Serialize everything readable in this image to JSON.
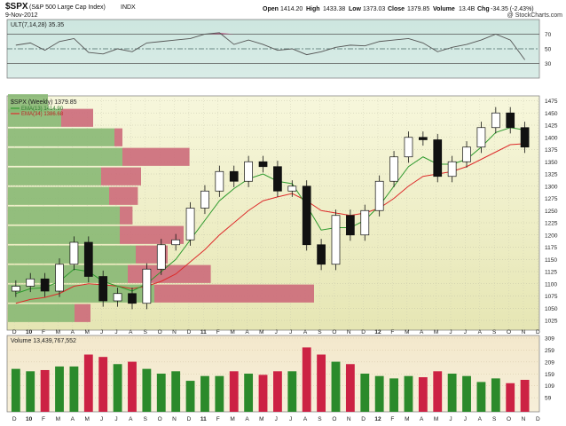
{
  "header": {
    "symbol": "$SPX",
    "name": "(S&P 500 Large Cap Index)",
    "exchange": "INDX",
    "date": "9-Nov-2012",
    "watermark": "@ StockCharts.com",
    "quote": {
      "open_label": "Open",
      "open": "1414.20",
      "high_label": "High",
      "high": "1433.38",
      "low_label": "Low",
      "low": "1373.03",
      "close_label": "Close",
      "close": "1379.85",
      "volume_label": "Volume",
      "volume": "13.4B",
      "chg_label": "Chg",
      "chg": "-34.35 (-2.43%)"
    }
  },
  "colors": {
    "up": "#2b8a2b",
    "down": "#cc2244",
    "ema13": "#2e9a2e",
    "ema34": "#dd2b2b",
    "ult_line": "#555555",
    "ult_fill": "#b5507e",
    "price_bg_top": "#f6f6d6",
    "price_bg_bottom": "#e8e8b8",
    "ult_bg": "#cfe6e0",
    "vol_bg": "#f4ead0",
    "vbp_green": "#88b874",
    "vbp_red": "#cc6a7a"
  },
  "chart_data": [
    {
      "type": "line",
      "title": "ULT(7,14,28) 35.35",
      "x": [
        "2009-12",
        "2010-01",
        "2010-02",
        "2010-03",
        "2010-04",
        "2010-05",
        "2010-06",
        "2010-07",
        "2010-08",
        "2010-09",
        "2010-10",
        "2010-11",
        "2010-12",
        "2011-01",
        "2011-02",
        "2011-03",
        "2011-04",
        "2011-05",
        "2011-06",
        "2011-07",
        "2011-08",
        "2011-09",
        "2011-10",
        "2011-11",
        "2011-12",
        "2012-01",
        "2012-02",
        "2012-03",
        "2012-04",
        "2012-05",
        "2012-06",
        "2012-07",
        "2012-08",
        "2012-09",
        "2012-10",
        "2012-11"
      ],
      "series": [
        {
          "values": [
            55,
            58,
            48,
            60,
            64,
            45,
            43,
            50,
            46,
            58,
            60,
            62,
            64,
            70,
            72,
            56,
            62,
            56,
            48,
            50,
            42,
            46,
            52,
            55,
            54,
            60,
            62,
            64,
            58,
            46,
            52,
            56,
            62,
            70,
            62,
            35
          ]
        }
      ],
      "reference_lines": [
        70,
        50,
        30
      ],
      "ylim": [
        10,
        90
      ],
      "y_ticks": [
        70,
        50,
        30
      ]
    },
    {
      "type": "candlestick",
      "title": "$SPX (Weekly) 1379.85",
      "legend": [
        {
          "name": "EMA(13) 1414.90",
          "color": "#2e9a2e"
        },
        {
          "name": "EMA(34) 1386.68",
          "color": "#dd2b2b"
        }
      ],
      "x": [
        "2009-12",
        "2010-01",
        "2010-02",
        "2010-03",
        "2010-04",
        "2010-05",
        "2010-06",
        "2010-07",
        "2010-08",
        "2010-09",
        "2010-10",
        "2010-11",
        "2010-12",
        "2011-01",
        "2011-02",
        "2011-03",
        "2011-04",
        "2011-05",
        "2011-06",
        "2011-07",
        "2011-08",
        "2011-09",
        "2011-10",
        "2011-11",
        "2011-12",
        "2012-01",
        "2012-02",
        "2012-03",
        "2012-04",
        "2012-05",
        "2012-06",
        "2012-07",
        "2012-08",
        "2012-09",
        "2012-10",
        "2012-11"
      ],
      "close": [
        1095,
        1110,
        1085,
        1140,
        1185,
        1115,
        1065,
        1080,
        1060,
        1130,
        1180,
        1190,
        1255,
        1290,
        1330,
        1310,
        1350,
        1340,
        1290,
        1300,
        1180,
        1140,
        1240,
        1200,
        1250,
        1310,
        1360,
        1400,
        1395,
        1320,
        1350,
        1380,
        1420,
        1450,
        1420,
        1380
      ],
      "ema13": [
        1080,
        1090,
        1092,
        1105,
        1130,
        1125,
        1105,
        1095,
        1085,
        1100,
        1125,
        1150,
        1190,
        1230,
        1270,
        1295,
        1315,
        1325,
        1310,
        1305,
        1260,
        1210,
        1215,
        1215,
        1230,
        1260,
        1300,
        1340,
        1360,
        1345,
        1345,
        1355,
        1380,
        1410,
        1420,
        1415
      ],
      "ema34": [
        1060,
        1068,
        1072,
        1080,
        1095,
        1100,
        1098,
        1095,
        1090,
        1095,
        1105,
        1120,
        1145,
        1170,
        1200,
        1225,
        1250,
        1270,
        1278,
        1285,
        1270,
        1250,
        1245,
        1240,
        1245,
        1255,
        1275,
        1300,
        1320,
        1325,
        1330,
        1340,
        1355,
        1370,
        1385,
        1387
      ],
      "ylim": [
        1005,
        1485
      ],
      "y_ticks": [
        1025,
        1050,
        1075,
        1100,
        1125,
        1150,
        1175,
        1200,
        1225,
        1250,
        1275,
        1300,
        1325,
        1350,
        1375,
        1400,
        1425,
        1450,
        1475
      ],
      "volume_by_price": [
        {
          "price": 1040,
          "up": 0.25,
          "down": 0.1
        },
        {
          "price": 1080,
          "up": 0.55,
          "down": 1.0
        },
        {
          "price": 1120,
          "up": 0.45,
          "down": 0.52
        },
        {
          "price": 1160,
          "up": 0.48,
          "down": 0.2
        },
        {
          "price": 1200,
          "up": 0.42,
          "down": 0.4
        },
        {
          "price": 1240,
          "up": 0.42,
          "down": 0.08
        },
        {
          "price": 1280,
          "up": 0.38,
          "down": 0.18
        },
        {
          "price": 1320,
          "up": 0.35,
          "down": 0.25
        },
        {
          "price": 1360,
          "up": 0.43,
          "down": 0.42
        },
        {
          "price": 1400,
          "up": 0.4,
          "down": 0.05
        },
        {
          "price": 1440,
          "up": 0.2,
          "down": 0.2
        },
        {
          "price": 1470,
          "up": 0.15,
          "down": 0.0
        }
      ]
    },
    {
      "type": "bar",
      "title": "Volume 13,439,767,552",
      "x": [
        "2009-12",
        "2010-01",
        "2010-02",
        "2010-03",
        "2010-04",
        "2010-05",
        "2010-06",
        "2010-07",
        "2010-08",
        "2010-09",
        "2010-10",
        "2010-11",
        "2010-12",
        "2011-01",
        "2011-02",
        "2011-03",
        "2011-04",
        "2011-05",
        "2011-06",
        "2011-07",
        "2011-08",
        "2011-09",
        "2011-10",
        "2011-11",
        "2011-12",
        "2012-01",
        "2012-02",
        "2012-03",
        "2012-04",
        "2012-05",
        "2012-06",
        "2012-07",
        "2012-08",
        "2012-09",
        "2012-10",
        "2012-11"
      ],
      "values": [
        180,
        170,
        175,
        190,
        190,
        240,
        230,
        200,
        210,
        180,
        160,
        170,
        130,
        150,
        150,
        170,
        160,
        155,
        170,
        170,
        270,
        240,
        210,
        200,
        160,
        150,
        140,
        150,
        145,
        170,
        160,
        150,
        125,
        140,
        120,
        134
      ],
      "ylim": [
        0,
        320
      ],
      "y_ticks": [
        309,
        259,
        209,
        159,
        109,
        59
      ]
    }
  ],
  "x_axis": {
    "labels": [
      "D",
      "10",
      "F",
      "M",
      "A",
      "M",
      "J",
      "J",
      "A",
      "S",
      "O",
      "N",
      "D",
      "11",
      "F",
      "M",
      "A",
      "M",
      "J",
      "J",
      "A",
      "S",
      "O",
      "N",
      "D",
      "12",
      "F",
      "M",
      "A",
      "M",
      "J",
      "J",
      "A",
      "S",
      "O",
      "N",
      "D"
    ],
    "bold_labels": [
      "10",
      "11",
      "12"
    ]
  }
}
